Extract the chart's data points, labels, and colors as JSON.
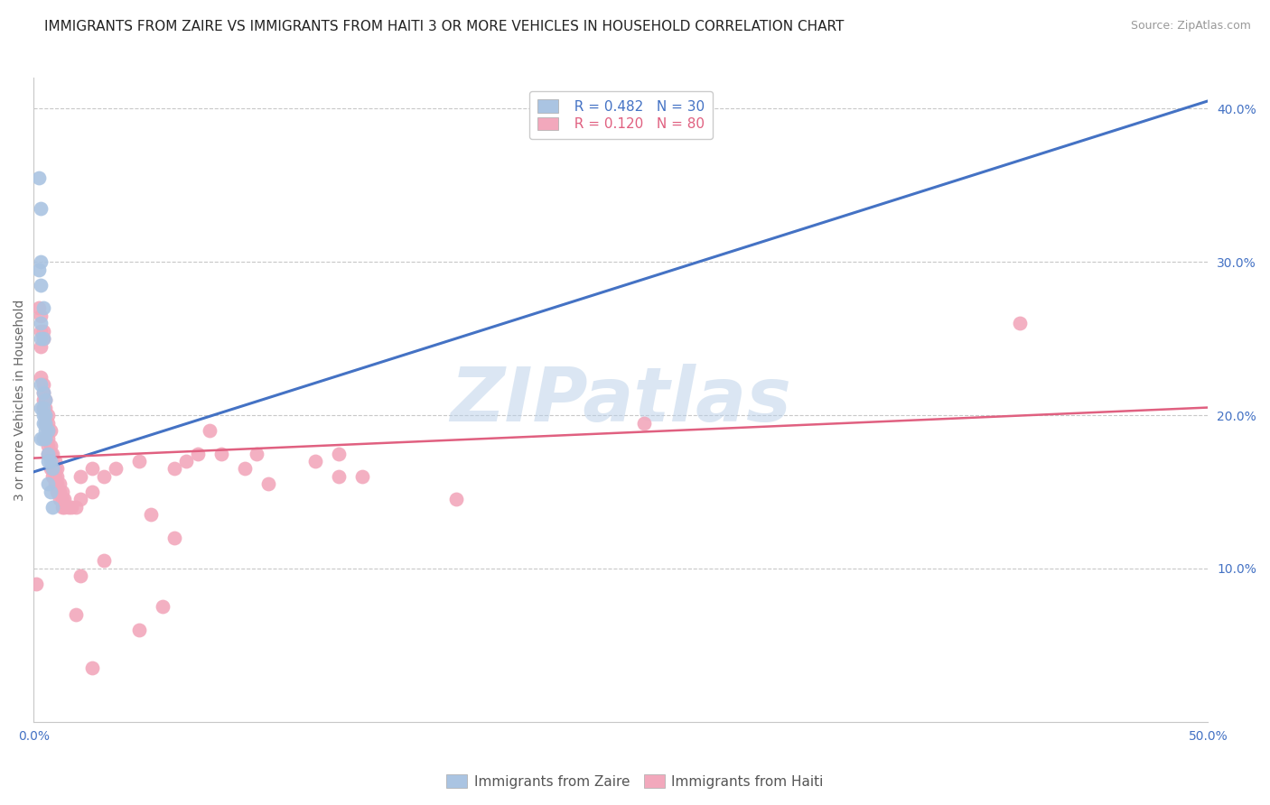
{
  "title": "IMMIGRANTS FROM ZAIRE VS IMMIGRANTS FROM HAITI 3 OR MORE VEHICLES IN HOUSEHOLD CORRELATION CHART",
  "source": "Source: ZipAtlas.com",
  "ylabel": "3 or more Vehicles in Household",
  "xlim": [
    0.0,
    0.5
  ],
  "ylim": [
    0.0,
    0.42
  ],
  "xticks": [
    0.0,
    0.05,
    0.1,
    0.15,
    0.2,
    0.25,
    0.3,
    0.35,
    0.4,
    0.45,
    0.5
  ],
  "yticks_right": [
    0.0,
    0.1,
    0.2,
    0.3,
    0.4
  ],
  "zaire_color": "#aac4e2",
  "haiti_color": "#f2a8bc",
  "zaire_line_color": "#4472c4",
  "haiti_line_color": "#e06080",
  "legend_zaire_r": "R = 0.482",
  "legend_zaire_n": "N = 30",
  "legend_haiti_r": "R = 0.120",
  "legend_haiti_n": "N = 80",
  "legend_label_zaire": "Immigrants from Zaire",
  "legend_label_haiti": "Immigrants from Haiti",
  "watermark": "ZIPatlas",
  "zaire_points": [
    [
      0.002,
      0.355
    ],
    [
      0.003,
      0.335
    ],
    [
      0.003,
      0.285
    ],
    [
      0.004,
      0.27
    ],
    [
      0.003,
      0.3
    ],
    [
      0.003,
      0.26
    ],
    [
      0.002,
      0.295
    ],
    [
      0.003,
      0.25
    ],
    [
      0.004,
      0.25
    ],
    [
      0.003,
      0.22
    ],
    [
      0.004,
      0.215
    ],
    [
      0.005,
      0.21
    ],
    [
      0.003,
      0.205
    ],
    [
      0.004,
      0.205
    ],
    [
      0.004,
      0.2
    ],
    [
      0.005,
      0.2
    ],
    [
      0.004,
      0.195
    ],
    [
      0.005,
      0.195
    ],
    [
      0.005,
      0.19
    ],
    [
      0.006,
      0.19
    ],
    [
      0.003,
      0.185
    ],
    [
      0.004,
      0.185
    ],
    [
      0.005,
      0.185
    ],
    [
      0.006,
      0.175
    ],
    [
      0.006,
      0.17
    ],
    [
      0.007,
      0.17
    ],
    [
      0.008,
      0.165
    ],
    [
      0.006,
      0.155
    ],
    [
      0.007,
      0.15
    ],
    [
      0.008,
      0.14
    ]
  ],
  "haiti_points": [
    [
      0.001,
      0.09
    ],
    [
      0.002,
      0.27
    ],
    [
      0.003,
      0.265
    ],
    [
      0.003,
      0.255
    ],
    [
      0.004,
      0.255
    ],
    [
      0.004,
      0.25
    ],
    [
      0.003,
      0.245
    ],
    [
      0.003,
      0.225
    ],
    [
      0.004,
      0.22
    ],
    [
      0.004,
      0.215
    ],
    [
      0.004,
      0.21
    ],
    [
      0.005,
      0.21
    ],
    [
      0.004,
      0.205
    ],
    [
      0.005,
      0.205
    ],
    [
      0.005,
      0.2
    ],
    [
      0.006,
      0.2
    ],
    [
      0.006,
      0.195
    ],
    [
      0.005,
      0.195
    ],
    [
      0.006,
      0.19
    ],
    [
      0.007,
      0.19
    ],
    [
      0.005,
      0.185
    ],
    [
      0.006,
      0.185
    ],
    [
      0.006,
      0.18
    ],
    [
      0.007,
      0.18
    ],
    [
      0.008,
      0.175
    ],
    [
      0.006,
      0.175
    ],
    [
      0.007,
      0.175
    ],
    [
      0.008,
      0.17
    ],
    [
      0.009,
      0.17
    ],
    [
      0.007,
      0.165
    ],
    [
      0.008,
      0.165
    ],
    [
      0.009,
      0.165
    ],
    [
      0.01,
      0.165
    ],
    [
      0.008,
      0.16
    ],
    [
      0.009,
      0.16
    ],
    [
      0.01,
      0.16
    ],
    [
      0.009,
      0.155
    ],
    [
      0.01,
      0.155
    ],
    [
      0.011,
      0.155
    ],
    [
      0.01,
      0.15
    ],
    [
      0.011,
      0.15
    ],
    [
      0.012,
      0.15
    ],
    [
      0.011,
      0.145
    ],
    [
      0.012,
      0.145
    ],
    [
      0.013,
      0.145
    ],
    [
      0.012,
      0.14
    ],
    [
      0.013,
      0.14
    ],
    [
      0.015,
      0.14
    ],
    [
      0.016,
      0.14
    ],
    [
      0.018,
      0.14
    ],
    [
      0.02,
      0.145
    ],
    [
      0.025,
      0.15
    ],
    [
      0.02,
      0.16
    ],
    [
      0.025,
      0.165
    ],
    [
      0.03,
      0.16
    ],
    [
      0.035,
      0.165
    ],
    [
      0.045,
      0.17
    ],
    [
      0.06,
      0.165
    ],
    [
      0.065,
      0.17
    ],
    [
      0.07,
      0.175
    ],
    [
      0.075,
      0.19
    ],
    [
      0.08,
      0.175
    ],
    [
      0.09,
      0.165
    ],
    [
      0.095,
      0.175
    ],
    [
      0.1,
      0.155
    ],
    [
      0.12,
      0.17
    ],
    [
      0.13,
      0.175
    ],
    [
      0.13,
      0.16
    ],
    [
      0.14,
      0.16
    ],
    [
      0.05,
      0.135
    ],
    [
      0.06,
      0.12
    ],
    [
      0.03,
      0.105
    ],
    [
      0.02,
      0.095
    ],
    [
      0.018,
      0.07
    ],
    [
      0.055,
      0.075
    ],
    [
      0.045,
      0.06
    ],
    [
      0.025,
      0.035
    ],
    [
      0.18,
      0.145
    ],
    [
      0.26,
      0.195
    ],
    [
      0.42,
      0.26
    ]
  ],
  "zaire_trend_x": [
    0.0,
    0.5
  ],
  "zaire_trend_y": [
    0.163,
    0.405
  ],
  "haiti_trend_x": [
    0.0,
    0.5
  ],
  "haiti_trend_y": [
    0.172,
    0.205
  ],
  "background_color": "#ffffff",
  "grid_color": "#c8c8c8",
  "title_fontsize": 11,
  "axis_label_fontsize": 10,
  "tick_fontsize": 10,
  "legend_fontsize": 11
}
